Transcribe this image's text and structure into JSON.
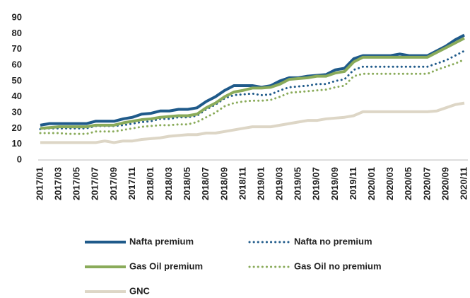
{
  "chart_data": {
    "type": "line",
    "categories": [
      "2017/01",
      null,
      "2017/03",
      null,
      "2017/05",
      null,
      "2017/07",
      null,
      "2017/09",
      null,
      "2017/11",
      null,
      "2018/01",
      null,
      "2018/03",
      null,
      "2018/05",
      null,
      "2018/07",
      null,
      "2018/09",
      null,
      "2018/11",
      null,
      "2019/01",
      null,
      "2019/03",
      null,
      "2019/05",
      null,
      "2019/07",
      null,
      "2019/09",
      null,
      "2019/11",
      null,
      "2020/01",
      null,
      "2020/03",
      null,
      "2020/05",
      null,
      "2020/07",
      null,
      "2020/09",
      null,
      "2020/11"
    ],
    "series": [
      {
        "name": "Nafta premium",
        "color": "#1f5a8a",
        "style": "solid",
        "values": [
          22,
          23,
          23,
          23,
          23,
          23,
          24.5,
          24.5,
          24.5,
          26,
          27,
          29,
          29.5,
          31,
          31,
          32,
          32,
          33,
          37,
          40,
          44,
          47,
          47,
          47,
          46,
          47,
          50,
          52,
          52,
          53,
          53.5,
          54,
          57,
          58,
          64,
          66,
          66,
          66,
          66,
          67,
          66,
          66,
          66,
          69,
          72,
          76,
          79
        ]
      },
      {
        "name": "Nafta no premium",
        "color": "#1f5a8a",
        "style": "dotted",
        "values": [
          19.5,
          20,
          20,
          20,
          20,
          20,
          21.5,
          21.5,
          21.5,
          22,
          23,
          24,
          24.5,
          26,
          26,
          27,
          27,
          28,
          32,
          35,
          39,
          41,
          41.5,
          42,
          41,
          41.5,
          44,
          46,
          46.5,
          47,
          48,
          48,
          50,
          51,
          57,
          59,
          59,
          59,
          59,
          59,
          59,
          59,
          59,
          61,
          63,
          66,
          69
        ]
      },
      {
        "name": "Gas Oil premium",
        "color": "#8aab5a",
        "style": "solid",
        "values": [
          20,
          20.5,
          21,
          21,
          21,
          21,
          22,
          22,
          22,
          23.5,
          24.5,
          25.5,
          26,
          27,
          27.5,
          28,
          28,
          29,
          33,
          36,
          40,
          43,
          44,
          45.5,
          45.5,
          46,
          48,
          51,
          51.5,
          52,
          53,
          53,
          55,
          56,
          62,
          65,
          65,
          65,
          65,
          65,
          65,
          65,
          65,
          68,
          71,
          74,
          77
        ]
      },
      {
        "name": "Gas Oil no premium",
        "color": "#8aab5a",
        "style": "dotted",
        "values": [
          17,
          17,
          17,
          16.5,
          16.5,
          16.5,
          18,
          18,
          18,
          19,
          20,
          21,
          21.5,
          22,
          22,
          22.5,
          22.5,
          24,
          27,
          30,
          34,
          36,
          37,
          37.5,
          37.5,
          38,
          40,
          42.5,
          43,
          43.5,
          44,
          44.5,
          46,
          47,
          53,
          54.5,
          54.5,
          54.5,
          54.5,
          54.5,
          54.5,
          54.5,
          54.5,
          57,
          59,
          61,
          63.5
        ]
      },
      {
        "name": "GNC",
        "color": "#ddd6c6",
        "style": "solid",
        "values": [
          11,
          11,
          11,
          11,
          11,
          11,
          11,
          12,
          11,
          12,
          12,
          13,
          13.5,
          14,
          15,
          15.5,
          16,
          16,
          17,
          17,
          18,
          19,
          20,
          21,
          21,
          21,
          22,
          23,
          24,
          25,
          25,
          26,
          26.5,
          27,
          28,
          30.5,
          30.5,
          30.5,
          30.5,
          30.5,
          30.5,
          30.5,
          30.5,
          31,
          33,
          35,
          36
        ]
      }
    ],
    "ylim": [
      0,
      90
    ],
    "yticks": [
      0,
      10,
      20,
      30,
      40,
      50,
      60,
      70,
      80,
      90
    ],
    "grid": false,
    "legend": "bottom"
  }
}
